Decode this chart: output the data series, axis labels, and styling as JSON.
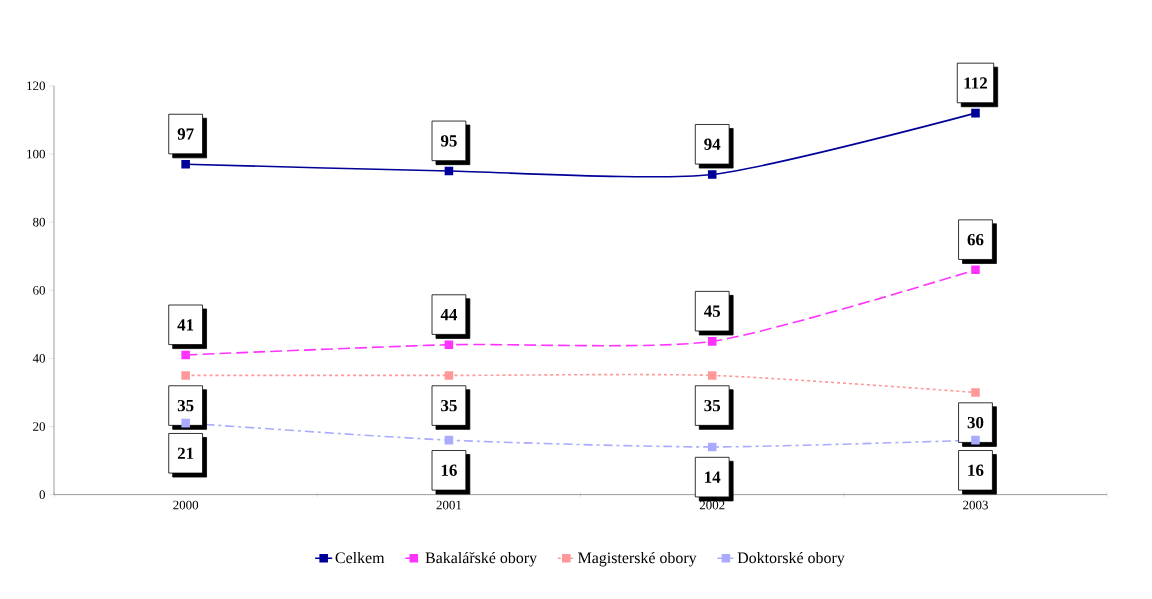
{
  "chart_data": {
    "type": "line",
    "categories": [
      "2000",
      "2001",
      "2002",
      "2003"
    ],
    "series": [
      {
        "name": "Celkem",
        "color": "#000099",
        "line_style": "solid",
        "values": [
          97,
          95,
          94,
          112
        ]
      },
      {
        "name": "Bakalářské obory",
        "color": "#ff33ff",
        "line_style": "dashed",
        "values": [
          41,
          44,
          45,
          66
        ]
      },
      {
        "name": "Magisterské obory",
        "color": "#ff9999",
        "line_style": "dotted",
        "values": [
          35,
          35,
          35,
          30
        ]
      },
      {
        "name": "Doktorské obory",
        "color": "#aaaaff",
        "line_style": "dashdot",
        "values": [
          21,
          16,
          14,
          16
        ]
      }
    ],
    "ylim": [
      0,
      120
    ],
    "yticks": [
      0,
      20,
      40,
      60,
      80,
      100,
      120
    ],
    "marker": "square",
    "legend": "bottom",
    "data_labels": true,
    "grid": false
  }
}
